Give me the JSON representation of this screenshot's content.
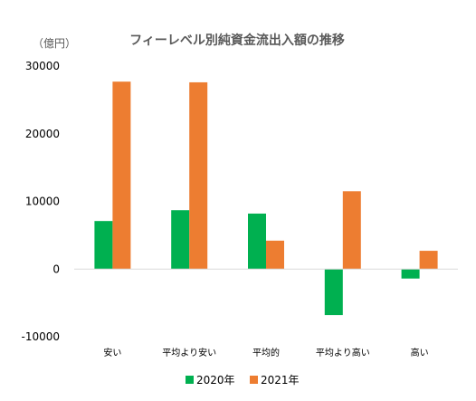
{
  "chart_data": {
    "type": "bar",
    "title": "フィーレベル別純資金流出入額の推移",
    "unit_label": "（億円）",
    "categories": [
      "安い",
      "平均より安い",
      "平均的",
      "平均より高い",
      "高い"
    ],
    "series": [
      {
        "name": "2020年",
        "color": "#00b050",
        "values": [
          7100,
          8700,
          8200,
          -6800,
          -1400
        ]
      },
      {
        "name": "2021年",
        "color": "#ed7d31",
        "values": [
          27700,
          27600,
          4200,
          11500,
          2700
        ]
      }
    ],
    "ylim": [
      -10000,
      30000
    ],
    "yticks": [
      -10000,
      0,
      10000,
      20000,
      30000
    ],
    "grid": false,
    "legend": "bottom"
  }
}
